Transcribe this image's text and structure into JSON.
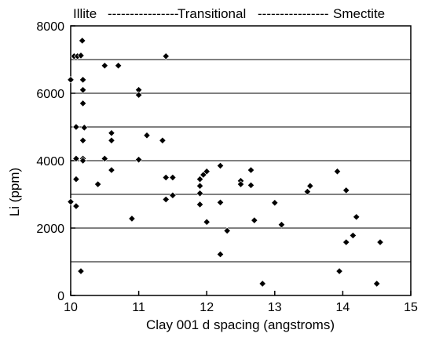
{
  "chart_data": {
    "type": "scatter",
    "title": "",
    "xlabel": "Clay 001 d spacing (angstroms)",
    "ylabel": "Li (ppm)",
    "xlim": [
      10,
      15
    ],
    "ylim": [
      0,
      8000
    ],
    "x_ticks": [
      "10",
      "11",
      "12",
      "13",
      "14",
      "15"
    ],
    "y_ticks": [
      "0",
      "2000",
      "4000",
      "6000",
      "8000"
    ],
    "grid": "horizontal",
    "gridlines_y": [
      1000,
      2000,
      3000,
      4000,
      5000,
      6000,
      7000
    ],
    "top_labels": {
      "left": "Illite",
      "dashes_1": "----------------",
      "middle": "Transitional",
      "dashes_2": "----------------",
      "right": "Smectite"
    },
    "marker": "diamond",
    "marker_color": "#000000",
    "series": [
      {
        "points": [
          [
            10.0,
            6400
          ],
          [
            10.0,
            2780
          ],
          [
            10.05,
            7100
          ],
          [
            10.1,
            7100
          ],
          [
            10.15,
            7120
          ],
          [
            10.17,
            7560
          ],
          [
            10.18,
            6400
          ],
          [
            10.18,
            6100
          ],
          [
            10.18,
            5700
          ],
          [
            10.08,
            5000
          ],
          [
            10.18,
            4600
          ],
          [
            10.2,
            4980
          ],
          [
            10.08,
            4060
          ],
          [
            10.18,
            4060
          ],
          [
            10.18,
            4000
          ],
          [
            10.08,
            3450
          ],
          [
            10.08,
            2650
          ],
          [
            10.15,
            720
          ],
          [
            10.4,
            3300
          ],
          [
            10.5,
            6820
          ],
          [
            10.7,
            6820
          ],
          [
            10.5,
            4060
          ],
          [
            10.6,
            4820
          ],
          [
            10.6,
            4600
          ],
          [
            10.6,
            3720
          ],
          [
            10.9,
            2280
          ],
          [
            11.0,
            6100
          ],
          [
            11.0,
            5950
          ],
          [
            11.0,
            4030
          ],
          [
            11.12,
            4750
          ],
          [
            11.35,
            4600
          ],
          [
            11.4,
            7100
          ],
          [
            11.4,
            3500
          ],
          [
            11.4,
            2850
          ],
          [
            11.5,
            3500
          ],
          [
            11.5,
            2970
          ],
          [
            11.9,
            3450
          ],
          [
            11.9,
            3250
          ],
          [
            11.9,
            3030
          ],
          [
            11.9,
            2700
          ],
          [
            11.95,
            3580
          ],
          [
            12.0,
            3680
          ],
          [
            12.0,
            2180
          ],
          [
            12.2,
            3850
          ],
          [
            12.2,
            2760
          ],
          [
            12.2,
            1220
          ],
          [
            12.3,
            1920
          ],
          [
            12.5,
            3400
          ],
          [
            12.5,
            3300
          ],
          [
            12.65,
            3720
          ],
          [
            12.65,
            3270
          ],
          [
            12.7,
            2230
          ],
          [
            12.82,
            350
          ],
          [
            13.0,
            2750
          ],
          [
            13.1,
            2100
          ],
          [
            13.48,
            3080
          ],
          [
            13.52,
            3250
          ],
          [
            13.92,
            3680
          ],
          [
            13.95,
            720
          ],
          [
            14.05,
            3120
          ],
          [
            14.05,
            1580
          ],
          [
            14.15,
            1780
          ],
          [
            14.2,
            2330
          ],
          [
            14.5,
            350
          ],
          [
            14.55,
            1580
          ]
        ]
      }
    ]
  }
}
